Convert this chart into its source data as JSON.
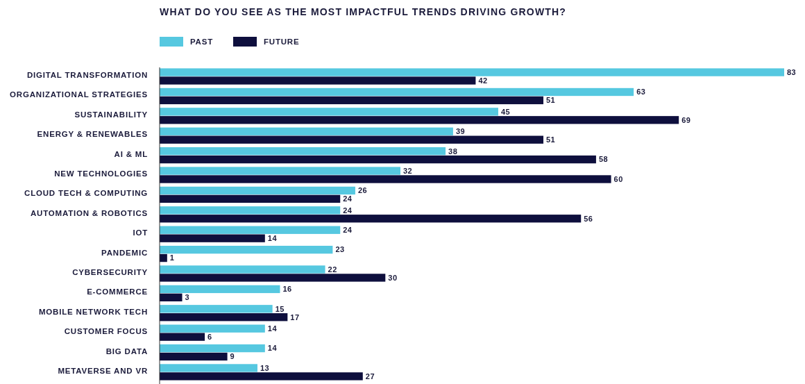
{
  "chart_data": {
    "type": "bar",
    "orientation": "horizontal",
    "title": "WHAT DO YOU SEE AS THE MOST IMPACTFUL TRENDS DRIVING GROWTH?",
    "categories": [
      "DIGITAL TRANSFORMATION",
      "ORGANIZATIONAL STRATEGIES",
      "SUSTAINABILITY",
      "ENERGY & RENEWABLES",
      "AI & ML",
      "NEW TECHNOLOGIES",
      "CLOUD TECH & COMPUTING",
      "AUTOMATION & ROBOTICS",
      "IOT",
      "PANDEMIC",
      "CYBERSECURITY",
      "E-COMMERCE",
      "MOBILE NETWORK TECH",
      "CUSTOMER FOCUS",
      "BIG DATA",
      "METAVERSE AND VR"
    ],
    "series": [
      {
        "name": "PAST",
        "color": "#56c8e0",
        "values": [
          83,
          63,
          45,
          39,
          38,
          32,
          26,
          24,
          24,
          23,
          22,
          16,
          15,
          14,
          14,
          13
        ]
      },
      {
        "name": "FUTURE",
        "color": "#0e0f3d",
        "values": [
          42,
          51,
          69,
          51,
          58,
          60,
          24,
          56,
          14,
          1,
          30,
          3,
          17,
          6,
          9,
          27
        ]
      }
    ],
    "data_labels": true,
    "legend": "top left"
  }
}
